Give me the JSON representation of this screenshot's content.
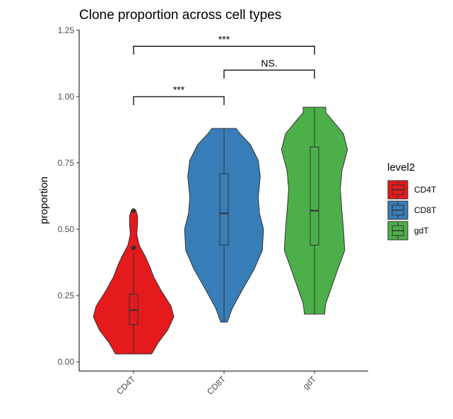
{
  "chart_data": {
    "type": "violin",
    "title": "Clone proportion across cell types",
    "xlabel": "",
    "ylabel": "proportion",
    "ylim": [
      0,
      1.25
    ],
    "yticks": [
      "0.00",
      "0.25",
      "0.50",
      "0.75",
      "1.00",
      "1.25"
    ],
    "ytick_values": [
      0,
      0.25,
      0.5,
      0.75,
      1.0,
      1.25
    ],
    "categories": [
      "CD4T",
      "CD8T",
      "gdT"
    ],
    "legend": {
      "title": "level2",
      "position": "right",
      "items": [
        "CD4T",
        "CD8T",
        "gdT"
      ]
    },
    "colors": [
      "#e41a1c",
      "#377eb8",
      "#4daf4a"
    ],
    "series": [
      {
        "name": "CD4T",
        "min": 0.03,
        "max": 0.57,
        "box": {
          "whisker_low": 0.03,
          "q1": 0.14,
          "median": 0.195,
          "q3": 0.255,
          "whisker_high": 0.41
        },
        "outliers": [
          0.43,
          0.57
        ],
        "density": [
          [
            0.03,
            0.45
          ],
          [
            0.07,
            0.6
          ],
          [
            0.12,
            0.85
          ],
          [
            0.17,
            1.0
          ],
          [
            0.21,
            0.93
          ],
          [
            0.27,
            0.68
          ],
          [
            0.32,
            0.5
          ],
          [
            0.36,
            0.4
          ],
          [
            0.4,
            0.28
          ],
          [
            0.44,
            0.14
          ],
          [
            0.48,
            0.08
          ],
          [
            0.52,
            0.1
          ],
          [
            0.55,
            0.1
          ],
          [
            0.57,
            0.06
          ]
        ]
      },
      {
        "name": "CD8T",
        "min": 0.15,
        "max": 0.88,
        "box": {
          "whisker_low": 0.15,
          "q1": 0.44,
          "median": 0.56,
          "q3": 0.71,
          "whisker_high": 0.88
        },
        "outliers": [],
        "density": [
          [
            0.15,
            0.08
          ],
          [
            0.2,
            0.2
          ],
          [
            0.27,
            0.45
          ],
          [
            0.35,
            0.75
          ],
          [
            0.42,
            0.95
          ],
          [
            0.5,
            0.98
          ],
          [
            0.56,
            0.88
          ],
          [
            0.62,
            0.85
          ],
          [
            0.7,
            0.9
          ],
          [
            0.76,
            0.85
          ],
          [
            0.82,
            0.65
          ],
          [
            0.86,
            0.4
          ],
          [
            0.88,
            0.3
          ]
        ]
      },
      {
        "name": "gdT",
        "min": 0.18,
        "max": 0.96,
        "box": {
          "whisker_low": 0.18,
          "q1": 0.44,
          "median": 0.57,
          "q3": 0.81,
          "whisker_high": 0.96
        },
        "outliers": [],
        "density": [
          [
            0.18,
            0.25
          ],
          [
            0.22,
            0.28
          ],
          [
            0.28,
            0.42
          ],
          [
            0.35,
            0.58
          ],
          [
            0.42,
            0.75
          ],
          [
            0.5,
            0.72
          ],
          [
            0.57,
            0.68
          ],
          [
            0.65,
            0.64
          ],
          [
            0.72,
            0.68
          ],
          [
            0.8,
            0.82
          ],
          [
            0.86,
            0.72
          ],
          [
            0.91,
            0.45
          ],
          [
            0.94,
            0.28
          ],
          [
            0.96,
            0.28
          ]
        ]
      }
    ],
    "comparisons": [
      {
        "from": "CD4T",
        "to": "CD8T",
        "y": 1.0,
        "label": "***"
      },
      {
        "from": "CD8T",
        "to": "gdT",
        "y": 1.1,
        "label": "NS."
      },
      {
        "from": "CD4T",
        "to": "gdT",
        "y": 1.19,
        "label": "***"
      }
    ]
  }
}
